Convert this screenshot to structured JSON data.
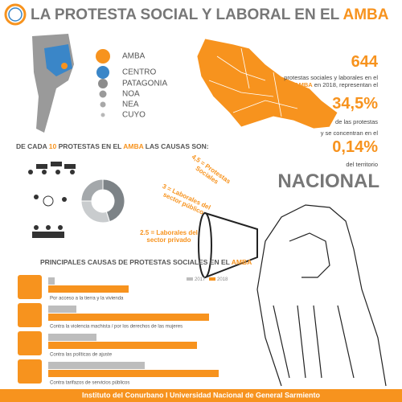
{
  "header": {
    "title": "LA PROTESTA  SOCIAL Y LABORAL EN EL ",
    "title_highlight": "AMBA"
  },
  "regions": [
    {
      "name": "AMBA",
      "color": "#f7931e"
    },
    {
      "name": "CENTRO",
      "color": "#3a86c8"
    },
    {
      "name": "PATAGONIA",
      "color": "#8c8c8c"
    },
    {
      "name": "NOA",
      "color": "#9a9a9a"
    },
    {
      "name": "NEA",
      "color": "#a8a8a8"
    },
    {
      "name": "CUYO",
      "color": "#b8b8b8"
    }
  ],
  "stats": {
    "count": "644",
    "count_text": "protestas sociales y laborales en el",
    "count_text_highlight": "AMBA",
    "count_text_end": " en 2018, representan el",
    "share": "34,5%",
    "share_text": "de las protestas\ny se concentran en  el",
    "area": "0,14%",
    "area_text": "del territorio",
    "scope": "NACIONAL"
  },
  "chart_data": [
    {
      "type": "pie",
      "title": [
        "DE CADA ",
        "10",
        " PROTESTAS EN EL ",
        "AMBA",
        " LAS CAUSAS SON:"
      ],
      "values": [
        4.5,
        3,
        2.5
      ],
      "value_labels": [
        "4,5 = Protestas\nSociales",
        "3 = Laborales del\nsector público",
        "2.5 = Laborales del\nsector privado"
      ],
      "colors": [
        "#7d8387",
        "#c9ccce",
        "#a4a8ab"
      ]
    },
    {
      "type": "bar",
      "title": "PRINCIPALES CAUSAS DE PROTESTAS SOCIALES  EN EL ",
      "title_highlight": "AMBA",
      "categories": [
        "Por acceso a la tierra y la vivienda",
        "Contra la violencia machista / por los derechos de las mujeres",
        "Contra las políticas de ajuste",
        "Contra tarifazos de servicios públicos"
      ],
      "series": [
        {
          "name": "2017",
          "color": "#bdbdbd",
          "values": [
            8,
            35,
            60,
            120
          ]
        },
        {
          "name": "2018",
          "color": "#f7931e",
          "values": [
            100,
            200,
            185,
            212
          ]
        }
      ]
    }
  ],
  "footer": "Instituto del Conurbano I Universidad Nacional de General Sarmiento"
}
